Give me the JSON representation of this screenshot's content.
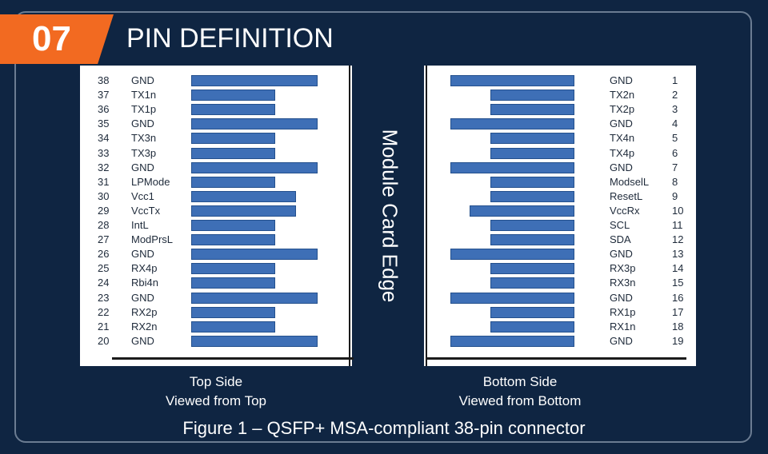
{
  "header": {
    "number": "07",
    "title": "PIN DEFINITION"
  },
  "edge_label": "Module Card Edge",
  "top_side": {
    "caption_line1": "Top Side",
    "caption_line2": "Viewed from Top",
    "pins": [
      {
        "num": "38",
        "signal": "GND",
        "type": "long"
      },
      {
        "num": "37",
        "signal": "TX1n",
        "type": "short"
      },
      {
        "num": "36",
        "signal": "TX1p",
        "type": "short"
      },
      {
        "num": "35",
        "signal": "GND",
        "type": "long"
      },
      {
        "num": "34",
        "signal": "TX3n",
        "type": "short"
      },
      {
        "num": "33",
        "signal": "TX3p",
        "type": "short"
      },
      {
        "num": "32",
        "signal": "GND",
        "type": "long"
      },
      {
        "num": "31",
        "signal": "LPMode",
        "type": "short"
      },
      {
        "num": "30",
        "signal": "Vcc1",
        "type": "medium"
      },
      {
        "num": "29",
        "signal": "VccTx",
        "type": "medium"
      },
      {
        "num": "28",
        "signal": "IntL",
        "type": "short"
      },
      {
        "num": "27",
        "signal": "ModPrsL",
        "type": "short"
      },
      {
        "num": "26",
        "signal": "GND",
        "type": "long"
      },
      {
        "num": "25",
        "signal": "RX4p",
        "type": "short"
      },
      {
        "num": "24",
        "signal": "Rbi4n",
        "type": "short"
      },
      {
        "num": "23",
        "signal": "GND",
        "type": "long"
      },
      {
        "num": "22",
        "signal": "RX2p",
        "type": "short"
      },
      {
        "num": "21",
        "signal": "RX2n",
        "type": "short"
      },
      {
        "num": "20",
        "signal": "GND",
        "type": "long"
      }
    ]
  },
  "bottom_side": {
    "caption_line1": "Bottom Side",
    "caption_line2": "Viewed from Bottom",
    "pins": [
      {
        "num": "1",
        "signal": "GND",
        "type": "long"
      },
      {
        "num": "2",
        "signal": "TX2n",
        "type": "short"
      },
      {
        "num": "3",
        "signal": "TX2p",
        "type": "short"
      },
      {
        "num": "4",
        "signal": "GND",
        "type": "long"
      },
      {
        "num": "5",
        "signal": "TX4n",
        "type": "short"
      },
      {
        "num": "6",
        "signal": "TX4p",
        "type": "short"
      },
      {
        "num": "7",
        "signal": "GND",
        "type": "long"
      },
      {
        "num": "8",
        "signal": "ModselL",
        "type": "short"
      },
      {
        "num": "9",
        "signal": "ResetL",
        "type": "short"
      },
      {
        "num": "10",
        "signal": "VccRx",
        "type": "medium"
      },
      {
        "num": "11",
        "signal": "SCL",
        "type": "short"
      },
      {
        "num": "12",
        "signal": "SDA",
        "type": "short"
      },
      {
        "num": "13",
        "signal": "GND",
        "type": "long"
      },
      {
        "num": "14",
        "signal": "RX3p",
        "type": "short"
      },
      {
        "num": "15",
        "signal": "RX3n",
        "type": "short"
      },
      {
        "num": "16",
        "signal": "GND",
        "type": "long"
      },
      {
        "num": "17",
        "signal": "RX1p",
        "type": "short"
      },
      {
        "num": "18",
        "signal": "RX1n",
        "type": "short"
      },
      {
        "num": "19",
        "signal": "GND",
        "type": "long"
      }
    ]
  },
  "figure_caption": "Figure 1 – QSFP+ MSA-compliant 38-pin connector",
  "colors": {
    "background": "#0f2542",
    "badge": "#f26a21",
    "pad": "#3e6fb6"
  }
}
